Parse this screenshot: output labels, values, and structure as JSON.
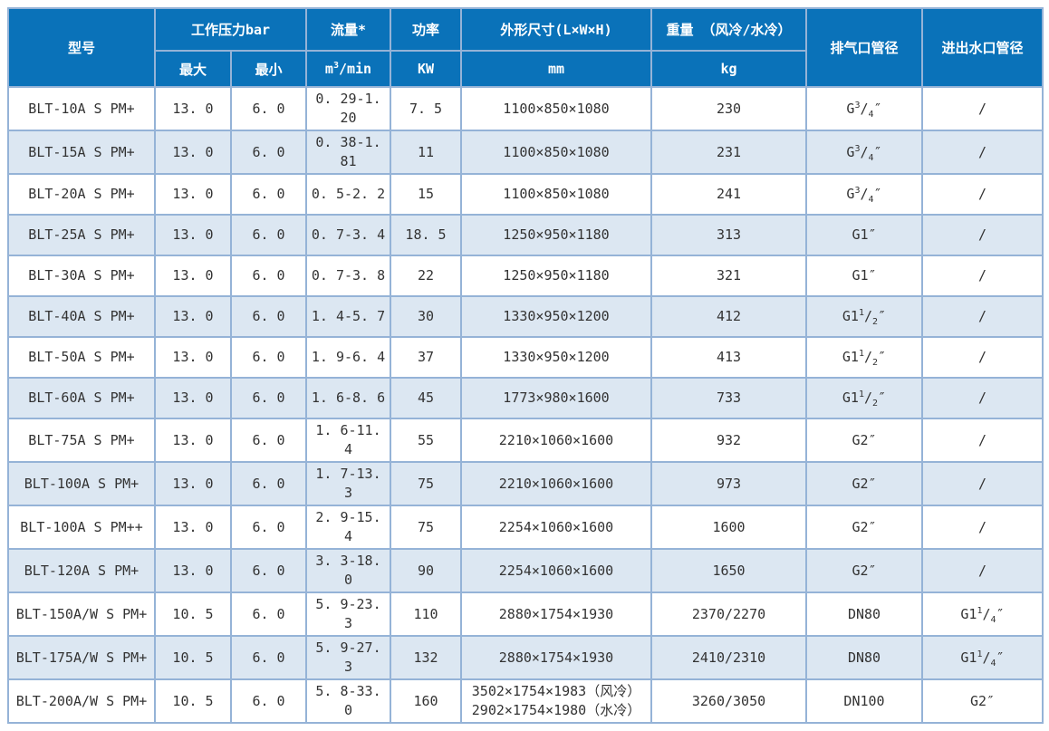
{
  "colors": {
    "header_bg": "#0a72b9",
    "header_text": "#ffffff",
    "grid_line": "#95b3d7",
    "row_alt_bg": "#dce7f2",
    "row_bg": "#ffffff",
    "body_text": "#333333"
  },
  "table": {
    "header": {
      "model": "型号",
      "pressure": "工作压力bar",
      "pressure_max": "最大",
      "pressure_min": "最小",
      "flow": "流量*",
      "flow_unit_pre": "m",
      "flow_unit_sup": "3",
      "flow_unit_post": "/min",
      "power": "功率",
      "power_unit": "KW",
      "dims": "外形尺寸(L×W×H)",
      "dims_unit": "mm",
      "weight": "重量 （风冷/水冷）",
      "weight_unit": "kg",
      "outlet": "排气口管径",
      "water": "进出水口管径"
    },
    "rows": [
      {
        "model": "BLT-10A S PM+",
        "max": "13. 0",
        "min": "6. 0",
        "flow": "0. 29-1. 20",
        "power": "7. 5",
        "dims": [
          "1100×850×1080"
        ],
        "weight": "230",
        "outlet": {
          "pre": "G",
          "sup": "3",
          "sub": "4",
          "post": "″"
        },
        "water": {
          "pre": "/"
        }
      },
      {
        "model": "BLT-15A S PM+",
        "max": "13. 0",
        "min": "6. 0",
        "flow": "0. 38-1. 81",
        "power": "11",
        "dims": [
          "1100×850×1080"
        ],
        "weight": "231",
        "outlet": {
          "pre": "G",
          "sup": "3",
          "sub": "4",
          "post": "″"
        },
        "water": {
          "pre": "/"
        }
      },
      {
        "model": "BLT-20A S PM+",
        "max": "13. 0",
        "min": "6. 0",
        "flow": "0. 5-2. 2",
        "power": "15",
        "dims": [
          "1100×850×1080"
        ],
        "weight": "241",
        "outlet": {
          "pre": "G",
          "sup": "3",
          "sub": "4",
          "post": "″"
        },
        "water": {
          "pre": "/"
        }
      },
      {
        "model": "BLT-25A S PM+",
        "max": "13. 0",
        "min": "6. 0",
        "flow": "0. 7-3. 4",
        "power": "18. 5",
        "dims": [
          "1250×950×1180"
        ],
        "weight": "313",
        "outlet": {
          "pre": "G1",
          "post": "″"
        },
        "water": {
          "pre": "/"
        }
      },
      {
        "model": "BLT-30A S PM+",
        "max": "13. 0",
        "min": "6. 0",
        "flow": "0. 7-3. 8",
        "power": "22",
        "dims": [
          "1250×950×1180"
        ],
        "weight": "321",
        "outlet": {
          "pre": "G1",
          "post": "″"
        },
        "water": {
          "pre": "/"
        }
      },
      {
        "model": "BLT-40A S PM+",
        "max": "13. 0",
        "min": "6. 0",
        "flow": "1. 4-5. 7",
        "power": "30",
        "dims": [
          "1330×950×1200"
        ],
        "weight": "412",
        "outlet": {
          "pre": "G1",
          "sup": "1",
          "sub": "2",
          "post": "″"
        },
        "water": {
          "pre": "/"
        }
      },
      {
        "model": "BLT-50A S PM+",
        "max": "13. 0",
        "min": "6. 0",
        "flow": "1. 9-6. 4",
        "power": "37",
        "dims": [
          "1330×950×1200"
        ],
        "weight": "413",
        "outlet": {
          "pre": "G1",
          "sup": "1",
          "sub": "2",
          "post": "″"
        },
        "water": {
          "pre": "/"
        }
      },
      {
        "model": "BLT-60A S PM+",
        "max": "13. 0",
        "min": "6. 0",
        "flow": "1. 6-8. 6",
        "power": "45",
        "dims": [
          "1773×980×1600"
        ],
        "weight": "733",
        "outlet": {
          "pre": "G1",
          "sup": "1",
          "sub": "2",
          "post": "″"
        },
        "water": {
          "pre": "/"
        }
      },
      {
        "model": "BLT-75A S PM+",
        "max": "13. 0",
        "min": "6. 0",
        "flow": "1. 6-11. 4",
        "power": "55",
        "dims": [
          "2210×1060×1600"
        ],
        "weight": "932",
        "outlet": {
          "pre": "G2",
          "post": "″"
        },
        "water": {
          "pre": "/"
        }
      },
      {
        "model": "BLT-100A S PM+",
        "max": "13. 0",
        "min": "6. 0",
        "flow": "1. 7-13. 3",
        "power": "75",
        "dims": [
          "2210×1060×1600"
        ],
        "weight": "973",
        "outlet": {
          "pre": "G2",
          "post": "″"
        },
        "water": {
          "pre": "/"
        }
      },
      {
        "model": "BLT-100A S PM++",
        "max": "13. 0",
        "min": "6. 0",
        "flow": "2. 9-15. 4",
        "power": "75",
        "dims": [
          "2254×1060×1600"
        ],
        "weight": "1600",
        "outlet": {
          "pre": "G2",
          "post": "″"
        },
        "water": {
          "pre": "/"
        }
      },
      {
        "model": "BLT-120A S PM+",
        "max": "13. 0",
        "min": "6. 0",
        "flow": "3. 3-18. 0",
        "power": "90",
        "dims": [
          "2254×1060×1600"
        ],
        "weight": "1650",
        "outlet": {
          "pre": "G2",
          "post": "″"
        },
        "water": {
          "pre": "/"
        }
      },
      {
        "model": "BLT-150A/W S PM+",
        "max": "10. 5",
        "min": "6. 0",
        "flow": "5. 9-23. 3",
        "power": "110",
        "dims": [
          "2880×1754×1930"
        ],
        "weight": "2370/2270",
        "outlet": {
          "pre": "DN80"
        },
        "water": {
          "pre": "G1",
          "sup": "1",
          "sub": "4",
          "post": "″"
        }
      },
      {
        "model": "BLT-175A/W S PM+",
        "max": "10. 5",
        "min": "6. 0",
        "flow": "5. 9-27. 3",
        "power": "132",
        "dims": [
          "2880×1754×1930"
        ],
        "weight": "2410/2310",
        "outlet": {
          "pre": "DN80"
        },
        "water": {
          "pre": "G1",
          "sup": "1",
          "sub": "4",
          "post": "″"
        }
      },
      {
        "model": "BLT-200A/W S PM+",
        "max": "10. 5",
        "min": "6. 0",
        "flow": "5. 8-33. 0",
        "power": "160",
        "dims": [
          "3502×1754×1983（风冷）",
          "2902×1754×1980（水冷）"
        ],
        "weight": "3260/3050",
        "outlet": {
          "pre": "DN100"
        },
        "water": {
          "pre": "G2",
          "post": "″"
        }
      }
    ]
  }
}
